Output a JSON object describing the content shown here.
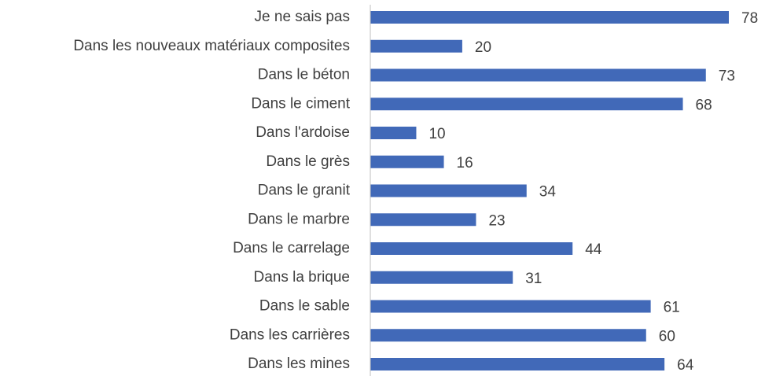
{
  "chart_data": {
    "type": "barh",
    "categories": [
      "Je ne sais pas",
      "Dans les nouveaux matériaux composites",
      "Dans le béton",
      "Dans le ciment",
      "Dans l'ardoise",
      "Dans le grès",
      "Dans le granit",
      "Dans le marbre",
      "Dans le carrelage",
      "Dans la brique",
      "Dans le sable",
      "Dans les carrières",
      "Dans les mines"
    ],
    "values": [
      78,
      20,
      73,
      68,
      10,
      16,
      34,
      23,
      44,
      31,
      61,
      60,
      64
    ],
    "color": "#4169b8"
  }
}
